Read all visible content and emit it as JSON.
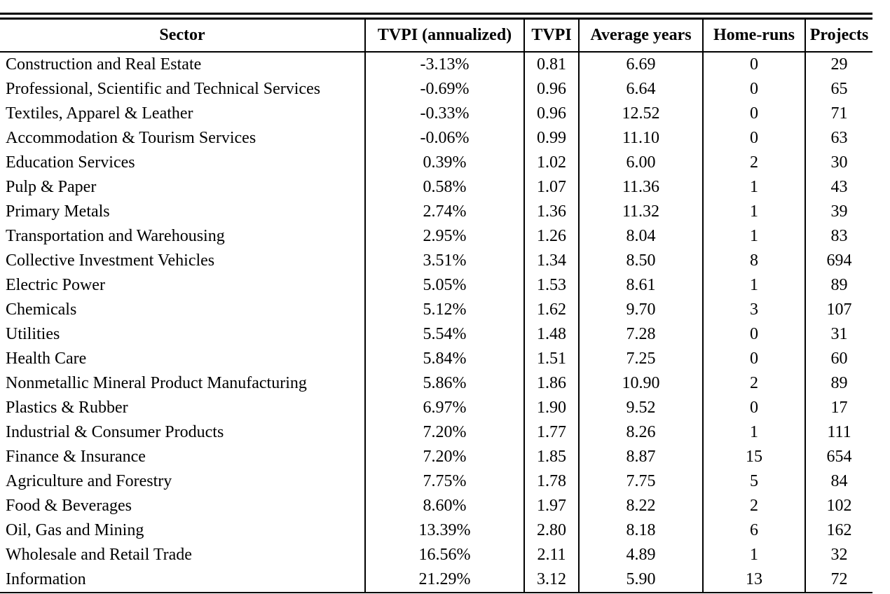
{
  "colors": {
    "text": "#000000",
    "rule": "#000000",
    "background": "#ffffff"
  },
  "table": {
    "columns": [
      "Sector",
      "TVPI (annualized)",
      "TVPI",
      "Average years",
      "Home-runs",
      "Projects"
    ],
    "rows": [
      [
        "Construction and Real Estate",
        "-3.13%",
        "0.81",
        "6.69",
        "0",
        "29"
      ],
      [
        "Professional, Scientific and Technical Services",
        "-0.69%",
        "0.96",
        "6.64",
        "0",
        "65"
      ],
      [
        "Textiles, Apparel & Leather",
        "-0.33%",
        "0.96",
        "12.52",
        "0",
        "71"
      ],
      [
        "Accommodation & Tourism Services",
        "-0.06%",
        "0.99",
        "11.10",
        "0",
        "63"
      ],
      [
        "Education Services",
        "0.39%",
        "1.02",
        "6.00",
        "2",
        "30"
      ],
      [
        "Pulp & Paper",
        "0.58%",
        "1.07",
        "11.36",
        "1",
        "43"
      ],
      [
        "Primary Metals",
        "2.74%",
        "1.36",
        "11.32",
        "1",
        "39"
      ],
      [
        "Transportation and Warehousing",
        "2.95%",
        "1.26",
        "8.04",
        "1",
        "83"
      ],
      [
        "Collective Investment Vehicles",
        "3.51%",
        "1.34",
        "8.50",
        "8",
        "694"
      ],
      [
        "Electric Power",
        "5.05%",
        "1.53",
        "8.61",
        "1",
        "89"
      ],
      [
        "Chemicals",
        "5.12%",
        "1.62",
        "9.70",
        "3",
        "107"
      ],
      [
        "Utilities",
        "5.54%",
        "1.48",
        "7.28",
        "0",
        "31"
      ],
      [
        "Health Care",
        "5.84%",
        "1.51",
        "7.25",
        "0",
        "60"
      ],
      [
        "Nonmetallic Mineral Product Manufacturing",
        "5.86%",
        "1.86",
        "10.90",
        "2",
        "89"
      ],
      [
        "Plastics & Rubber",
        "6.97%",
        "1.90",
        "9.52",
        "0",
        "17"
      ],
      [
        "Industrial & Consumer Products",
        "7.20%",
        "1.77",
        "8.26",
        "1",
        "111"
      ],
      [
        "Finance & Insurance",
        "7.20%",
        "1.85",
        "8.87",
        "15",
        "654"
      ],
      [
        "Agriculture and Forestry",
        "7.75%",
        "1.78",
        "7.75",
        "5",
        "84"
      ],
      [
        "Food & Beverages",
        "8.60%",
        "1.97",
        "8.22",
        "2",
        "102"
      ],
      [
        "Oil, Gas and Mining",
        "13.39%",
        "2.80",
        "8.18",
        "6",
        "162"
      ],
      [
        "Wholesale and Retail Trade",
        "16.56%",
        "2.11",
        "4.89",
        "1",
        "32"
      ],
      [
        "Information",
        "21.29%",
        "3.12",
        "5.90",
        "13",
        "72"
      ]
    ]
  }
}
